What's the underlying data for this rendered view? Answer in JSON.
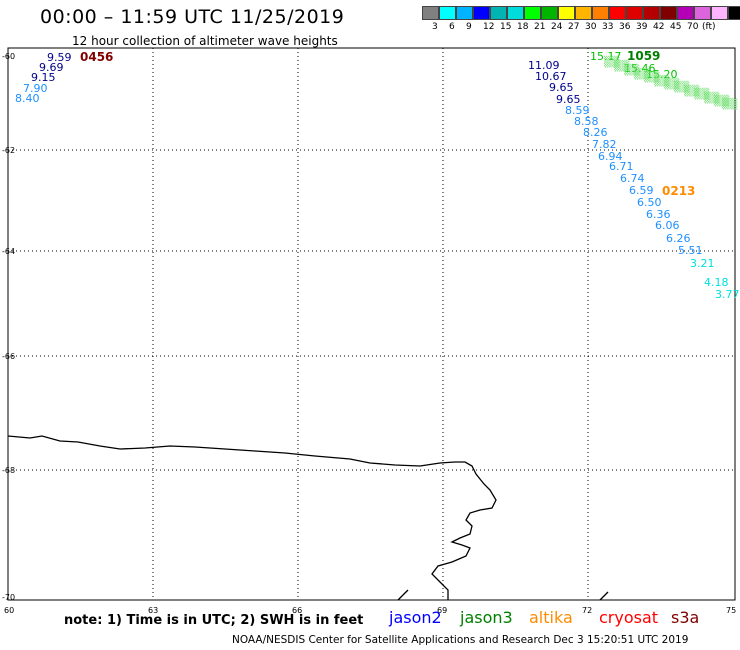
{
  "title": "00:00 – 11:59 UTC 11/25/2019",
  "subtitle": "12 hour collection of altimeter wave heights",
  "legend": {
    "colors": [
      "#808080",
      "#00ffff",
      "#00b4ff",
      "#0000ff",
      "#00b4b4",
      "#00dcdc",
      "#00ff00",
      "#00b400",
      "#ffff00",
      "#ffb400",
      "#ff8000",
      "#ff0000",
      "#dc0000",
      "#b40000",
      "#800000",
      "#b400b4",
      "#dc64dc",
      "#ffb4ff",
      "#000000"
    ],
    "values": [
      "3",
      "6",
      "9",
      "12",
      "15",
      "18",
      "21",
      "24",
      "27",
      "30",
      "33",
      "36",
      "39",
      "42",
      "45",
      "70"
    ],
    "unit": "(ft)"
  },
  "lat_labels": [
    "-60",
    "-62",
    "-64",
    "-66",
    "-68",
    "-70"
  ],
  "lon_labels": [
    "60",
    "63",
    "66",
    "69",
    "72",
    "75"
  ],
  "tracks": [
    {
      "time": "0456",
      "color": "#800000",
      "points": [
        {
          "v": "9.59",
          "c": "#00008b"
        },
        {
          "v": "9.69",
          "c": "#00008b"
        },
        {
          "v": "9.15",
          "c": "#00008b"
        },
        {
          "v": "7.90",
          "c": "#1e90ff"
        },
        {
          "v": "8.40",
          "c": "#1e90ff"
        }
      ]
    },
    {
      "time": "1059",
      "color": "#008000",
      "points": [
        {
          "v": "15.17",
          "c": "#00c000"
        },
        {
          "v": "15.46",
          "c": "#00c000"
        },
        {
          "v": "15.20",
          "c": "#00c000"
        }
      ]
    },
    {
      "time": "0213",
      "color": "#ff8c00",
      "points": [
        {
          "v": "11.09",
          "c": "#00008b"
        },
        {
          "v": "10.67",
          "c": "#00008b"
        },
        {
          "v": "9.65",
          "c": "#00008b"
        },
        {
          "v": "9.65",
          "c": "#00008b"
        },
        {
          "v": "8.59",
          "c": "#1e90ff"
        },
        {
          "v": "8.58",
          "c": "#1e90ff"
        },
        {
          "v": "8.26",
          "c": "#1e90ff"
        },
        {
          "v": "7.82",
          "c": "#1e90ff"
        },
        {
          "v": "6.94",
          "c": "#1e90ff"
        },
        {
          "v": "6.71",
          "c": "#1e90ff"
        },
        {
          "v": "6.74",
          "c": "#1e90ff"
        },
        {
          "v": "6.59",
          "c": "#1e90ff"
        },
        {
          "v": "6.50",
          "c": "#1e90ff"
        },
        {
          "v": "6.36",
          "c": "#1e90ff"
        },
        {
          "v": "6.06",
          "c": "#1e90ff"
        },
        {
          "v": "6.26",
          "c": "#1e90ff"
        },
        {
          "v": "5.51",
          "c": "#1e90ff"
        },
        {
          "v": "3.21",
          "c": "#00e0e0"
        },
        {
          "v": "4.18",
          "c": "#00e0e0"
        },
        {
          "v": "3.77",
          "c": "#00e0e0"
        }
      ]
    }
  ],
  "note": "note: 1) Time is in UTC; 2) SWH is in feet",
  "satellites": [
    {
      "name": "jason2",
      "color": "#0000ff"
    },
    {
      "name": "jason3",
      "color": "#008000"
    },
    {
      "name": "altika",
      "color": "#ff8c00"
    },
    {
      "name": "cryosat",
      "color": "#ff0000"
    },
    {
      "name": "s3a",
      "color": "#800000"
    }
  ],
  "footer": "NOAA/NESDIS Center for Satellite Applications and Research    Dec  3 15:20:51 UTC 2019"
}
